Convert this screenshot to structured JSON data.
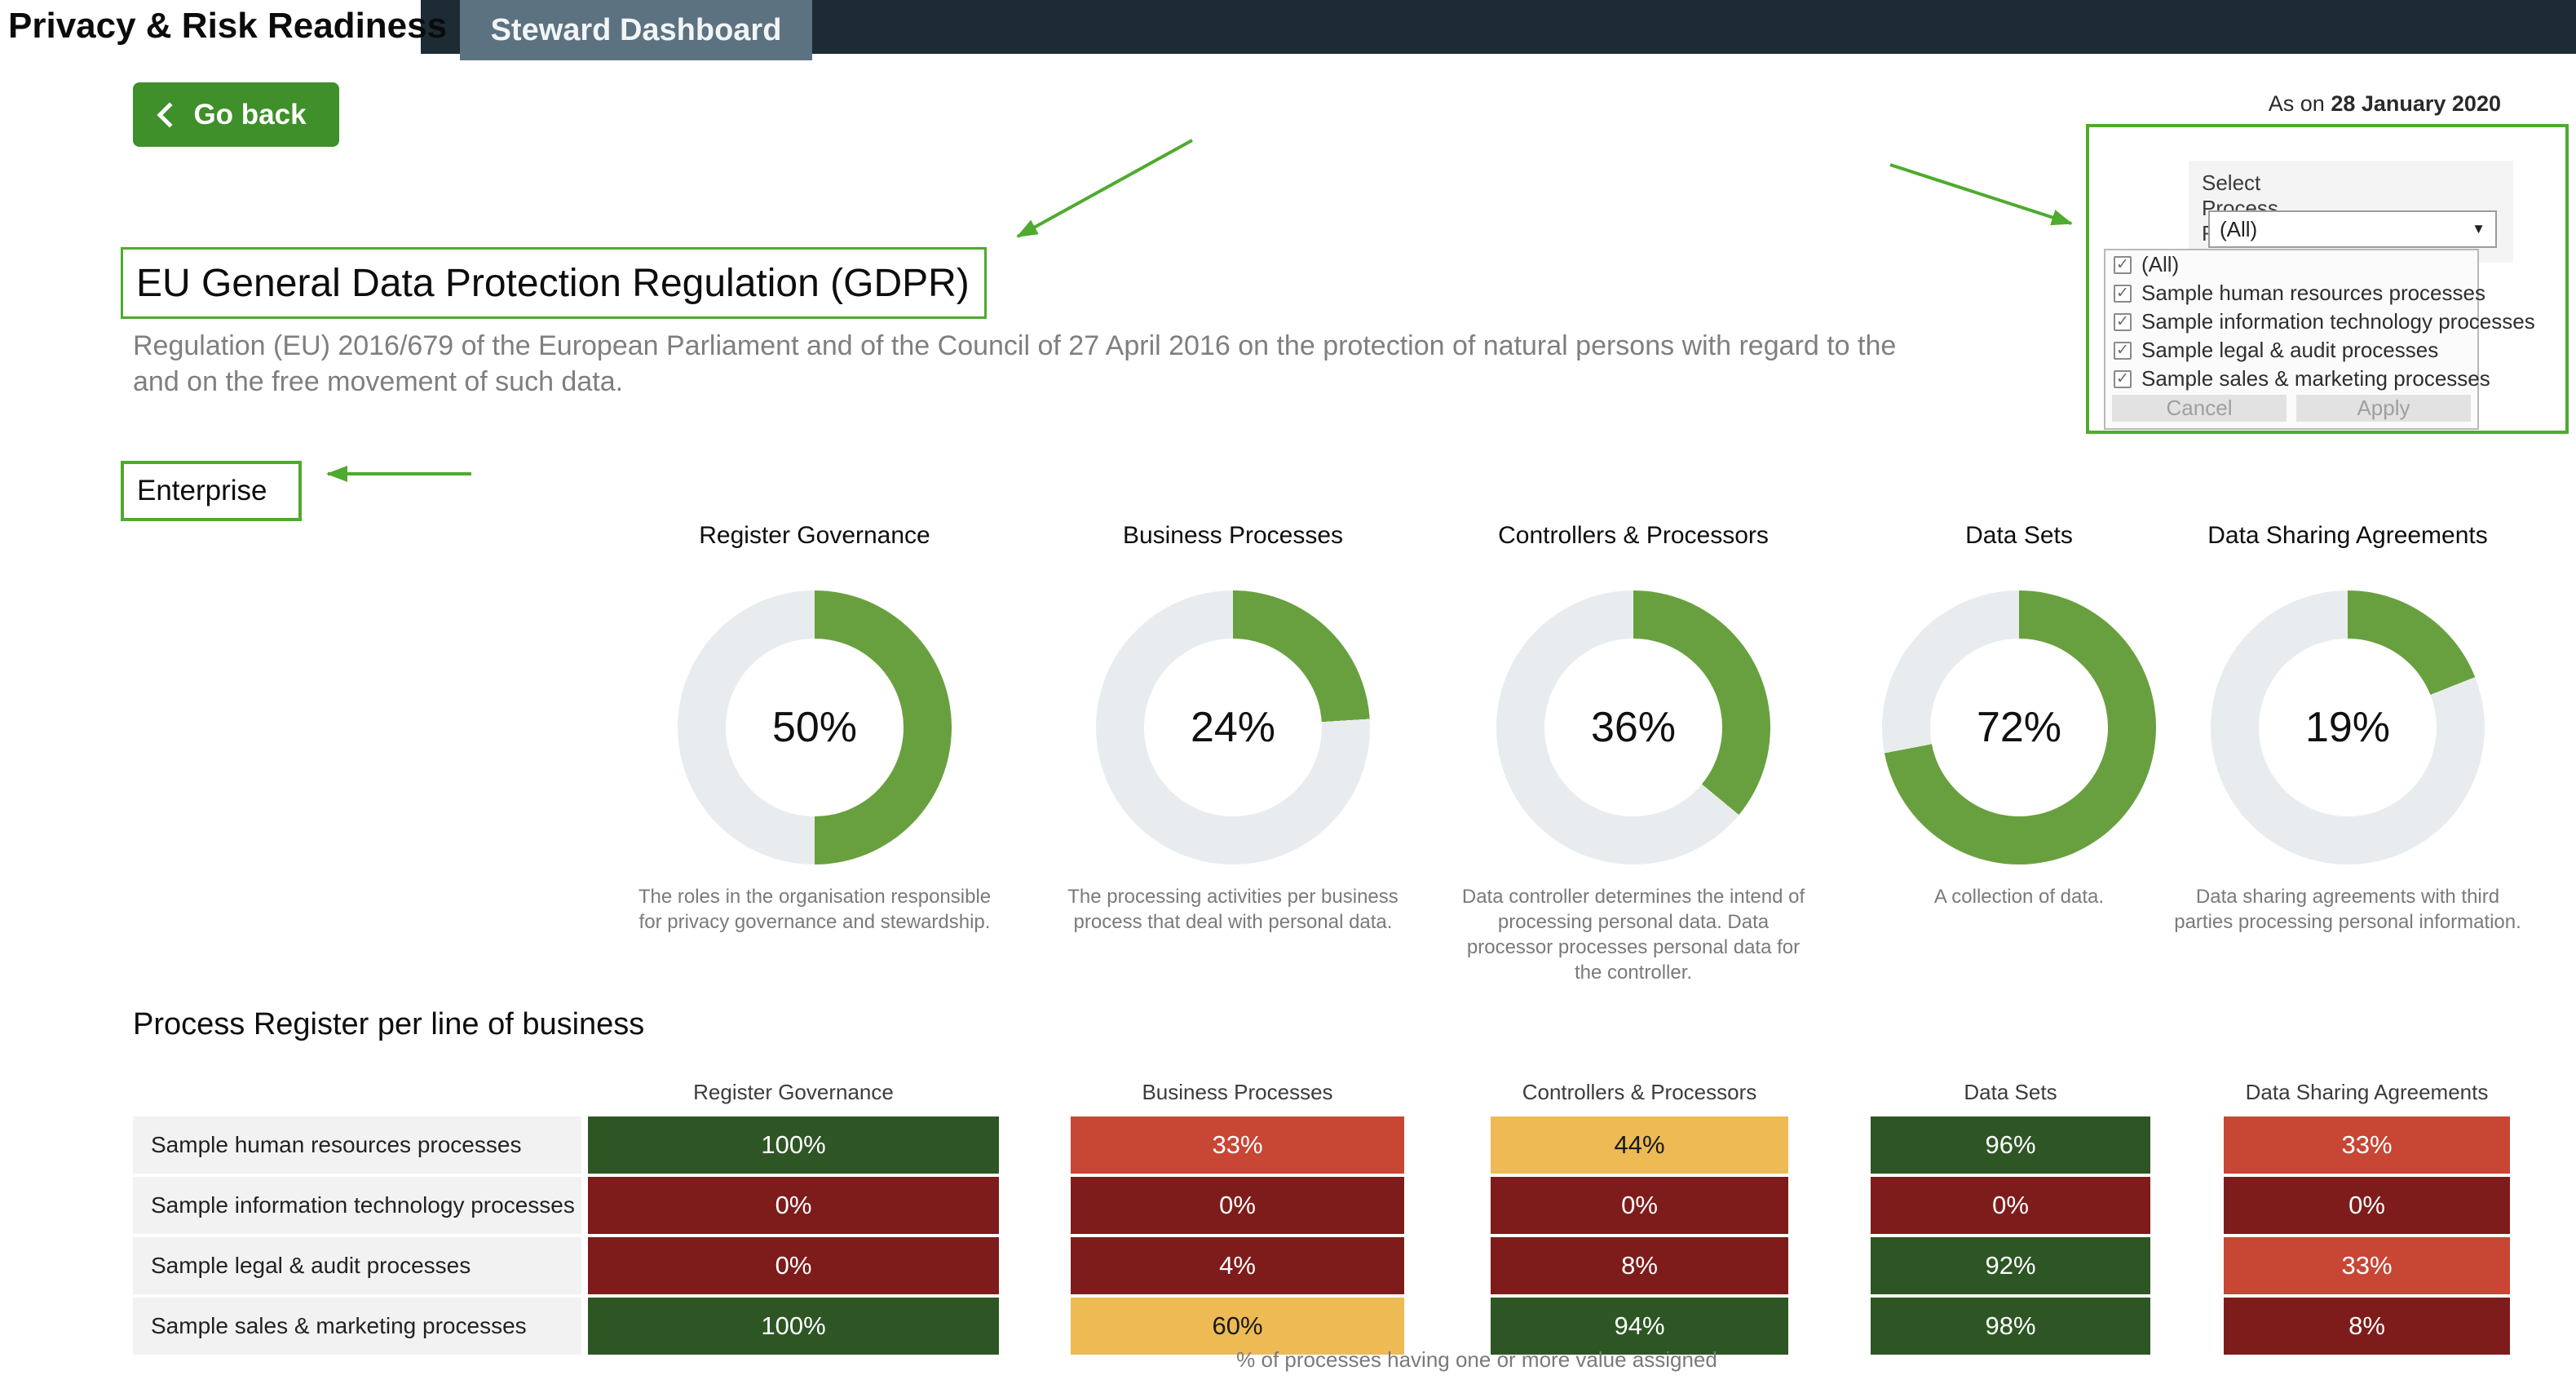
{
  "header": {
    "title": "Privacy & Risk Readiness",
    "tab": "Steward Dashboard"
  },
  "toolbar": {
    "go_back_label": "Go back",
    "as_on_prefix": "As on ",
    "as_on_date": "28 January 2020"
  },
  "regulation": {
    "title": "EU General Data Protection Regulation (GDPR)",
    "subtitle_line1": "Regulation (EU) 2016/679 of the European Parliament and of the Council of 27 April 2016 on the protection of natural persons with regard to the",
    "subtitle_line2": "and on the free movement of such data."
  },
  "scope": {
    "label": "Enterprise"
  },
  "filter": {
    "label": "Select Process Register",
    "selected_value": "(All)",
    "options": [
      {
        "label": "(All)",
        "checked": true
      },
      {
        "label": "Sample human resources processes",
        "checked": true
      },
      {
        "label": "Sample information technology processes",
        "checked": true
      },
      {
        "label": "Sample legal & audit processes",
        "checked": true
      },
      {
        "label": "Sample sales & marketing processes",
        "checked": true
      }
    ],
    "cancel_label": "Cancel",
    "apply_label": "Apply"
  },
  "icons": {
    "dropdown_arrow": "▼",
    "checkbox_check": "✓"
  },
  "kpis": [
    {
      "title": "Register Governance",
      "value": "50%",
      "pct": 50,
      "description": "The roles in the organisation responsible for privacy governance and stewardship."
    },
    {
      "title": "Business Processes",
      "value": "24%",
      "pct": 24,
      "description": "The processing activities per business process that deal with personal data."
    },
    {
      "title": "Controllers & Processors",
      "value": "36%",
      "pct": 36,
      "description": "Data controller determines the intend of processing personal data. Data processor processes personal data for the controller."
    },
    {
      "title": "Data Sets",
      "value": "72%",
      "pct": 72,
      "description": "A collection of data."
    },
    {
      "title": "Data Sharing Agreements",
      "value": "19%",
      "pct": 19,
      "description": "Data sharing agreements with third parties processing personal information."
    }
  ],
  "table": {
    "heading": "Process Register per line of business",
    "columns": [
      "Register Governance",
      "Business Processes",
      "Controllers & Processors",
      "Data Sets",
      "Data Sharing Agreements"
    ],
    "rows": [
      {
        "label": "Sample human resources processes",
        "cells": [
          {
            "value": "100%",
            "tone": "good"
          },
          {
            "value": "33%",
            "tone": "bad"
          },
          {
            "value": "44%",
            "tone": "warn"
          },
          {
            "value": "96%",
            "tone": "good"
          },
          {
            "value": "33%",
            "tone": "bad"
          }
        ]
      },
      {
        "label": "Sample information technology processes",
        "cells": [
          {
            "value": "0%",
            "tone": "worst"
          },
          {
            "value": "0%",
            "tone": "worst"
          },
          {
            "value": "0%",
            "tone": "worst"
          },
          {
            "value": "0%",
            "tone": "worst"
          },
          {
            "value": "0%",
            "tone": "worst"
          }
        ]
      },
      {
        "label": "Sample legal & audit processes",
        "cells": [
          {
            "value": "0%",
            "tone": "worst"
          },
          {
            "value": "4%",
            "tone": "worst"
          },
          {
            "value": "8%",
            "tone": "worst"
          },
          {
            "value": "92%",
            "tone": "good"
          },
          {
            "value": "33%",
            "tone": "bad"
          }
        ]
      },
      {
        "label": "Sample sales & marketing processes",
        "cells": [
          {
            "value": "100%",
            "tone": "good"
          },
          {
            "value": "60%",
            "tone": "warn"
          },
          {
            "value": "94%",
            "tone": "good"
          },
          {
            "value": "98%",
            "tone": "good"
          },
          {
            "value": "8%",
            "tone": "worst"
          }
        ]
      }
    ],
    "footnote": "% of processes having one or more value assigned"
  },
  "colors": {
    "accent_green": "#4faa2e",
    "button_green": "#3f8f2a",
    "donut_green": "#69a03f",
    "donut_track": "#e9ecee",
    "navy": "#1d2b35",
    "tab_slate": "#5d7280",
    "cell_good": "#2e5625",
    "cell_bad": "#c74634",
    "cell_worst": "#7e1c1b",
    "cell_warn": "#edba54",
    "label_bg": "#f2f2f2"
  }
}
